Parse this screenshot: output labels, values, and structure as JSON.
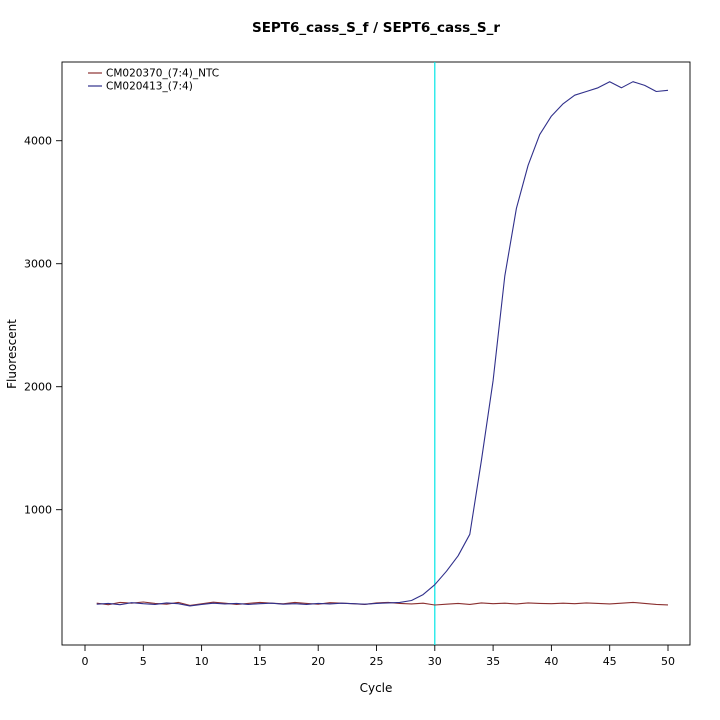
{
  "figure": {
    "title": "SEPT6_cass_S_f / SEPT6_cass_S_r",
    "xlabel": "Cycle",
    "ylabel": "Fluorescent"
  },
  "chart_data": {
    "type": "line",
    "title": "SEPT6_cass_S_f / SEPT6_cass_S_r",
    "xlabel": "Cycle",
    "ylabel": "Fluorescent",
    "xlim": [
      0,
      50
    ],
    "ylim": [
      -100,
      4640
    ],
    "xticks": [
      0,
      5,
      10,
      15,
      20,
      25,
      30,
      35,
      40,
      45,
      50
    ],
    "yticks": [
      1000,
      2000,
      3000,
      4000
    ],
    "grid": false,
    "legend_position": "top-left",
    "threshold_line": {
      "x": 30,
      "color": "#00e6e6"
    },
    "x": [
      1,
      2,
      3,
      4,
      5,
      6,
      7,
      8,
      9,
      10,
      11,
      12,
      13,
      14,
      15,
      16,
      17,
      18,
      19,
      20,
      21,
      22,
      23,
      24,
      25,
      26,
      27,
      28,
      29,
      30,
      31,
      32,
      33,
      34,
      35,
      36,
      37,
      38,
      39,
      40,
      41,
      42,
      43,
      44,
      45,
      46,
      47,
      48,
      49,
      50
    ],
    "series": [
      {
        "name": "CM020370_(7:4)_NTC",
        "color": "#8b3030",
        "values": [
          240,
          228,
          246,
          240,
          250,
          238,
          232,
          246,
          222,
          235,
          248,
          240,
          230,
          238,
          246,
          240,
          235,
          246,
          238,
          232,
          244,
          240,
          236,
          230,
          242,
          246,
          238,
          234,
          240,
          225,
          232,
          238,
          230,
          242,
          236,
          240,
          234,
          242,
          238,
          236,
          240,
          236,
          242,
          238,
          234,
          240,
          246,
          238,
          230,
          226
        ]
      },
      {
        "name": "CM020413_(7:4)",
        "color": "#30308b",
        "values": [
          232,
          238,
          228,
          244,
          236,
          230,
          242,
          236,
          218,
          230,
          240,
          234,
          238,
          230,
          236,
          240,
          232,
          236,
          230,
          238,
          234,
          240,
          236,
          232,
          238,
          242,
          246,
          262,
          310,
          390,
          500,
          625,
          800,
          1400,
          2050,
          2900,
          3450,
          3800,
          4050,
          4200,
          4300,
          4370,
          4400,
          4430,
          4480,
          4430,
          4480,
          4450,
          4400,
          4410
        ]
      }
    ]
  }
}
